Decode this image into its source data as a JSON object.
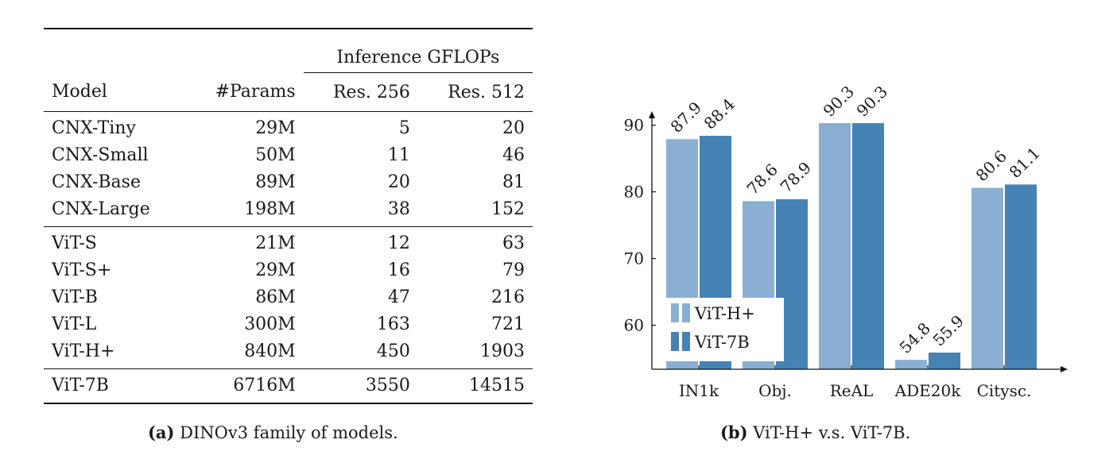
{
  "table": {
    "group_header": "Inference GFLOPs",
    "columns": [
      "Model",
      "#Params",
      "Res. 256",
      "Res. 512"
    ],
    "groups": [
      [
        [
          "CNX-Tiny",
          "29M",
          "5",
          "20"
        ],
        [
          "CNX-Small",
          "50M",
          "11",
          "46"
        ],
        [
          "CNX-Base",
          "89M",
          "20",
          "81"
        ],
        [
          "CNX-Large",
          "198M",
          "38",
          "152"
        ]
      ],
      [
        [
          "ViT-S",
          "21M",
          "12",
          "63"
        ],
        [
          "ViT-S+",
          "29M",
          "16",
          "79"
        ],
        [
          "ViT-B",
          "86M",
          "47",
          "216"
        ],
        [
          "ViT-L",
          "300M",
          "163",
          "721"
        ],
        [
          "ViT-H+",
          "840M",
          "450",
          "1903"
        ]
      ],
      [
        [
          "ViT-7B",
          "6716M",
          "3550",
          "14515"
        ]
      ]
    ]
  },
  "captions": {
    "a_tag": "(a)",
    "a_text": "DINOv3 family of models.",
    "b_tag": "(b)",
    "b_text": "ViT-H+ v.s. ViT-7B."
  },
  "chart_data": {
    "type": "bar",
    "categories": [
      "IN1k",
      "Obj.",
      "ReAL",
      "ADE20k",
      "Citysc."
    ],
    "series": [
      {
        "name": "ViT-H+",
        "values": [
          87.9,
          78.6,
          90.3,
          54.8,
          80.6
        ],
        "color": "#8aafd2",
        "labels": [
          "87.9",
          "78.6",
          "90.3",
          "54.8",
          "80.6"
        ]
      },
      {
        "name": "ViT-7B",
        "values": [
          88.4,
          78.9,
          90.3,
          55.9,
          81.1
        ],
        "color": "#4682b4",
        "labels": [
          "88.4",
          "78.9",
          "90.3",
          "55.9",
          "81.1"
        ]
      }
    ],
    "yticks": [
      60,
      70,
      80,
      90
    ],
    "ylim": [
      53.4,
      91.5
    ],
    "legend_position": "lower-left",
    "title": "",
    "xlabel": "",
    "ylabel": ""
  }
}
